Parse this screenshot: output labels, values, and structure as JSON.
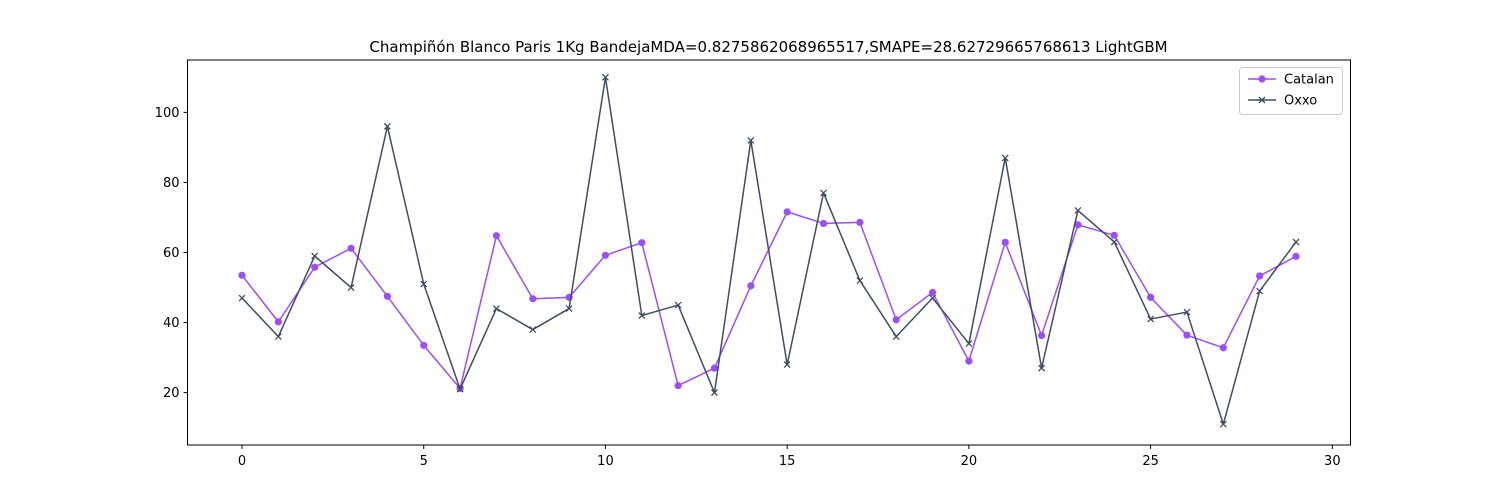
{
  "chart_data": {
    "type": "line",
    "title": "Champiñón Blanco Paris 1Kg BandejaMDA=0.8275862068965517,SMAPE=28.62729665768613 LightGBM",
    "xlabel": "",
    "ylabel": "",
    "xlim": [
      -1.5,
      30.5
    ],
    "ylim": [
      5.05,
      114.95
    ],
    "xticks": [
      0,
      5,
      10,
      15,
      20,
      25,
      30
    ],
    "yticks": [
      20,
      40,
      60,
      80,
      100
    ],
    "grid": false,
    "legend_position": "top-right",
    "x": [
      0,
      1,
      2,
      3,
      4,
      5,
      6,
      7,
      8,
      9,
      10,
      11,
      12,
      13,
      14,
      15,
      16,
      17,
      18,
      19,
      20,
      21,
      22,
      23,
      24,
      25,
      26,
      27,
      28,
      29
    ],
    "series": [
      {
        "name": "Catalan",
        "color": "#9b4dff",
        "marker": "circle",
        "values": [
          53.5,
          40.2,
          55.8,
          61.2,
          47.5,
          33.5,
          21.2,
          64.8,
          46.8,
          47.2,
          59.2,
          62.8,
          22.0,
          27.0,
          50.5,
          71.6,
          68.3,
          68.6,
          40.8,
          48.6,
          29.0,
          62.9,
          36.3,
          67.9,
          64.9,
          47.2,
          36.4,
          32.8,
          53.3,
          58.9
        ]
      },
      {
        "name": "Oxxo",
        "color": "#3f4d63",
        "marker": "x",
        "values": [
          47,
          36,
          59,
          50,
          96,
          51,
          21,
          44,
          38,
          44,
          110,
          42,
          45,
          20,
          92,
          28,
          77,
          52,
          36,
          47,
          34,
          87,
          27,
          72,
          63,
          41,
          43,
          11,
          49,
          63
        ]
      }
    ]
  }
}
